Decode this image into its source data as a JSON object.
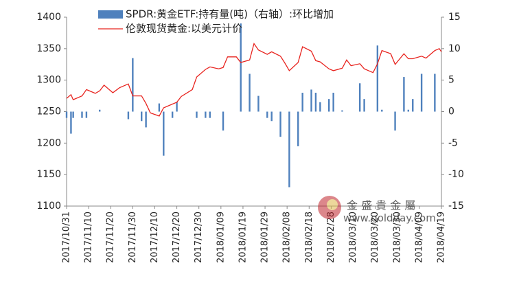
{
  "chart_data": {
    "type": "bar-line",
    "x": [
      "2017/10/31",
      "2017/11/02",
      "2017/11/03",
      "2017/11/07",
      "2017/11/09",
      "2017/11/13",
      "2017/11/15",
      "2017/11/17",
      "2017/11/21",
      "2017/11/24",
      "2017/11/28",
      "2017/11/30",
      "2017/12/04",
      "2017/12/06",
      "2017/12/08",
      "2017/12/12",
      "2017/12/14",
      "2017/12/18",
      "2017/12/20",
      "2017/12/22",
      "2017/12/27",
      "2017/12/29",
      "2018/01/02",
      "2018/01/04",
      "2018/01/08",
      "2018/01/10",
      "2018/01/12",
      "2018/01/16",
      "2018/01/18",
      "2018/01/22",
      "2018/01/24",
      "2018/01/26",
      "2018/01/30",
      "2018/02/01",
      "2018/02/05",
      "2018/02/07",
      "2018/02/09",
      "2018/02/13",
      "2018/02/15",
      "2018/02/19",
      "2018/02/21",
      "2018/02/23",
      "2018/02/27",
      "2018/03/01",
      "2018/03/05",
      "2018/03/07",
      "2018/03/09",
      "2018/03/13",
      "2018/03/15",
      "2018/03/19",
      "2018/03/21",
      "2018/03/23",
      "2018/03/27",
      "2018/03/29",
      "2018/04/02",
      "2018/04/04",
      "2018/04/06",
      "2018/04/10",
      "2018/04/12",
      "2018/04/16",
      "2018/04/18",
      "2018/04/19"
    ],
    "series": [
      {
        "name": "伦敦现货黄金:以美元计价",
        "type": "line",
        "color": "#e8241f",
        "axis": "y",
        "values": [
          1271,
          1277,
          1269,
          1275,
          1285,
          1279,
          1283,
          1292,
          1280,
          1288,
          1294,
          1275,
          1275,
          1263,
          1248,
          1243,
          1256,
          1262,
          1265,
          1274,
          1285,
          1305,
          1317,
          1321,
          1318,
          1320,
          1337,
          1337,
          1328,
          1332,
          1358,
          1348,
          1341,
          1345,
          1338,
          1327,
          1315,
          1328,
          1353,
          1346,
          1331,
          1329,
          1318,
          1315,
          1319,
          1332,
          1323,
          1326,
          1318,
          1312,
          1326,
          1347,
          1342,
          1325,
          1342,
          1334,
          1334,
          1338,
          1335,
          1347,
          1350,
          1345
        ]
      },
      {
        "name": "SPDR:黄金ETF:持有量(吨)（右轴）:环比增加",
        "type": "bar",
        "color": "#4f81bd",
        "axis": "y2",
        "values": [
          -1,
          -3.5,
          -1,
          -1,
          -1,
          null,
          0.3,
          null,
          null,
          null,
          -1.2,
          8.5,
          -1.5,
          -2.5,
          null,
          1.3,
          -7,
          -1,
          1.5,
          null,
          null,
          -1,
          -1,
          -1,
          null,
          -3,
          null,
          null,
          14,
          6,
          null,
          2.5,
          -1,
          -1.5,
          -4,
          null,
          -12,
          -5.5,
          3,
          3.5,
          3,
          1.5,
          2,
          3,
          0.2,
          null,
          null,
          4.5,
          2,
          null,
          10.5,
          0.3,
          null,
          -3,
          5.5,
          0.3,
          2,
          6,
          null,
          6,
          null,
          null
        ]
      }
    ],
    "xlim": [
      "2017/10/31",
      "2018/04/19"
    ],
    "xticks": [
      "2017/10/31",
      "2017/11/10",
      "2017/11/20",
      "2017/11/30",
      "2017/12/10",
      "2017/12/20",
      "2017/12/30",
      "2018/01/09",
      "2018/01/19",
      "2018/01/29",
      "2018/02/08",
      "2018/02/18",
      "2018/02/28",
      "2018/03/10",
      "2018/03/20",
      "2018/03/30",
      "2018/04/09",
      "2018/04/19"
    ],
    "ylim": [
      1100,
      1400
    ],
    "yticks": [
      1100,
      1150,
      1200,
      1250,
      1300,
      1350,
      1400
    ],
    "y2lim": [
      -15,
      15
    ],
    "y2ticks": [
      -15,
      -10,
      -5,
      0,
      5,
      10,
      15
    ],
    "watermark": [
      "金 盛 貴 金 屬",
      "www.goldday.com"
    ]
  }
}
